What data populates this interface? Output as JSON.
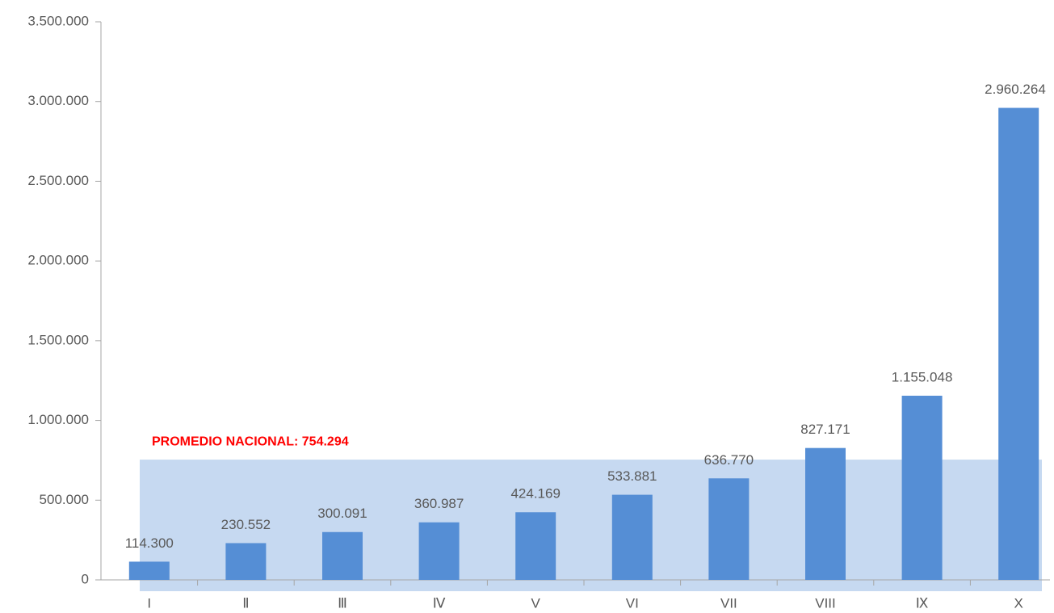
{
  "chart_data": {
    "type": "bar",
    "categories": [
      "I",
      "Ⅱ",
      "Ⅲ",
      "Ⅳ",
      "V",
      "VI",
      "VII",
      "VIII",
      "Ⅸ",
      "X"
    ],
    "values": [
      114300,
      230552,
      300091,
      360987,
      424169,
      533881,
      636770,
      827171,
      1155048,
      2960264
    ],
    "value_labels": [
      "114.300",
      "230.552",
      "300.091",
      "360.987",
      "424.169",
      "533.881",
      "636.770",
      "827.171",
      "1.155.048",
      "2.960.264"
    ],
    "color": "#558ed5",
    "average": {
      "value": 754294,
      "label": "PROMEDIO NACIONAL: 754.294",
      "color": "#c6d9f1",
      "label_color": "#ff0000"
    },
    "ylim": [
      0,
      3500000
    ],
    "yticks": [
      0,
      {
        "value": 500000,
        "label": "500.000"
      },
      {
        "value": 1000000,
        "label": "1.000.000"
      },
      {
        "value": 1500000,
        "label": "1.500.000"
      },
      {
        "value": 2000000,
        "label": "2.000.000"
      },
      {
        "value": 2500000,
        "label": "2.500.000"
      },
      {
        "value": 3000000,
        "label": "3.000.000"
      },
      {
        "value": 3500000,
        "label": "3.500.000"
      }
    ],
    "grid": false
  }
}
